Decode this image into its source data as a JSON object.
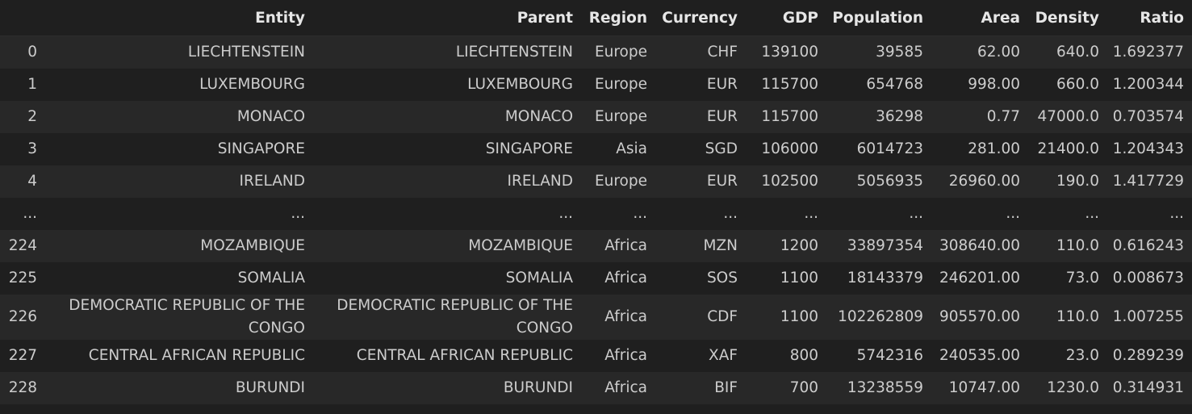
{
  "columns": [
    "Entity",
    "Parent",
    "Region",
    "Currency",
    "GDP",
    "Population",
    "Area",
    "Density",
    "Ratio"
  ],
  "rows": [
    {
      "index": "0",
      "cells": [
        "LIECHTENSTEIN",
        "LIECHTENSTEIN",
        "Europe",
        "CHF",
        "139100",
        "39585",
        "62.00",
        "640.0",
        "1.692377"
      ]
    },
    {
      "index": "1",
      "cells": [
        "LUXEMBOURG",
        "LUXEMBOURG",
        "Europe",
        "EUR",
        "115700",
        "654768",
        "998.00",
        "660.0",
        "1.200344"
      ]
    },
    {
      "index": "2",
      "cells": [
        "MONACO",
        "MONACO",
        "Europe",
        "EUR",
        "115700",
        "36298",
        "0.77",
        "47000.0",
        "0.703574"
      ]
    },
    {
      "index": "3",
      "cells": [
        "SINGAPORE",
        "SINGAPORE",
        "Asia",
        "SGD",
        "106000",
        "6014723",
        "281.00",
        "21400.0",
        "1.204343"
      ]
    },
    {
      "index": "4",
      "cells": [
        "IRELAND",
        "IRELAND",
        "Europe",
        "EUR",
        "102500",
        "5056935",
        "26960.00",
        "190.0",
        "1.417729"
      ]
    },
    {
      "index": "...",
      "cells": [
        "...",
        "...",
        "...",
        "...",
        "...",
        "...",
        "...",
        "...",
        "..."
      ]
    },
    {
      "index": "224",
      "cells": [
        "MOZAMBIQUE",
        "MOZAMBIQUE",
        "Africa",
        "MZN",
        "1200",
        "33897354",
        "308640.00",
        "110.0",
        "0.616243"
      ]
    },
    {
      "index": "225",
      "cells": [
        "SOMALIA",
        "SOMALIA",
        "Africa",
        "SOS",
        "1100",
        "18143379",
        "246201.00",
        "73.0",
        "0.008673"
      ]
    },
    {
      "index": "226",
      "cells": [
        "DEMOCRATIC REPUBLIC OF THE CONGO",
        "DEMOCRATIC REPUBLIC OF THE CONGO",
        "Africa",
        "CDF",
        "1100",
        "102262809",
        "905570.00",
        "110.0",
        "1.007255"
      ]
    },
    {
      "index": "227",
      "cells": [
        "CENTRAL AFRICAN REPUBLIC",
        "CENTRAL AFRICAN REPUBLIC",
        "Africa",
        "XAF",
        "800",
        "5742316",
        "240535.00",
        "23.0",
        "0.289239"
      ]
    },
    {
      "index": "228",
      "cells": [
        "BURUNDI",
        "BURUNDI",
        "Africa",
        "BIF",
        "700",
        "13238559",
        "10747.00",
        "1230.0",
        "0.314931"
      ]
    }
  ]
}
